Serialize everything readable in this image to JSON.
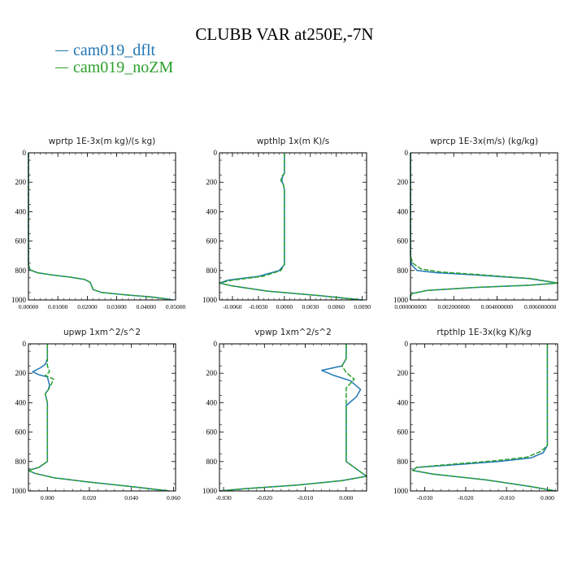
{
  "title": "CLUBB VAR at250E,-7N",
  "legend": [
    {
      "name": "cam019_dflt",
      "color": "#1f77b4"
    },
    {
      "name": "cam019_noZM",
      "color": "#2ca02c"
    }
  ],
  "chart_data": [
    {
      "type": "line",
      "title": "wprtp  1E-3x(m kg)/(s kg)",
      "xlim": [
        0,
        0.05
      ],
      "ylim": [
        0,
        1000
      ],
      "y_inverted": true,
      "xticks": [
        "0.00000",
        "0.01000",
        "0.02000",
        "0.03000",
        "0.04000",
        "0.05000"
      ],
      "xtick_values": [
        0,
        0.01,
        0.02,
        0.03,
        0.04,
        0.05
      ],
      "yticks": [
        "0",
        "200",
        "400",
        "600",
        "800",
        "1000"
      ],
      "series": [
        {
          "name": "cam019_dflt",
          "x": [
            0,
            0,
            0,
            0.0005,
            0.003,
            0.008,
            0.014,
            0.019,
            0.021,
            0.022,
            0.025,
            0.033,
            0.042,
            0.046,
            0.049
          ],
          "y": [
            0,
            500,
            760,
            795,
            815,
            830,
            845,
            860,
            880,
            930,
            950,
            965,
            980,
            990,
            1000
          ]
        },
        {
          "name": "cam019_noZM",
          "x": [
            0,
            0,
            0,
            0.0006,
            0.003,
            0.008,
            0.014,
            0.019,
            0.021,
            0.022,
            0.025,
            0.033,
            0.042,
            0.046,
            0.048
          ],
          "y": [
            0,
            500,
            760,
            795,
            815,
            830,
            845,
            860,
            880,
            930,
            950,
            965,
            980,
            990,
            1000
          ]
        }
      ]
    },
    {
      "type": "line",
      "title": "wpthlp  1x(m K)/s",
      "xlim": [
        -0.0075,
        0.0095
      ],
      "ylim": [
        0,
        1000
      ],
      "y_inverted": true,
      "xticks": [
        "-0.0060",
        "-0.0030",
        "0.0000",
        "0.0030",
        "0.0060",
        "0.0090"
      ],
      "xtick_values": [
        -0.006,
        -0.003,
        0,
        0.003,
        0.006,
        0.009
      ],
      "yticks": [
        "0",
        "200",
        "400",
        "600",
        "800",
        "1000"
      ],
      "series": [
        {
          "name": "cam019_dflt",
          "x": [
            0,
            0,
            0,
            -0.0002,
            -0.0003,
            -0.0001,
            0,
            0,
            0,
            -0.0006,
            -0.003,
            -0.0065,
            -0.0075,
            -0.006,
            -0.002,
            0.004,
            0.009
          ],
          "y": [
            0,
            100,
            140,
            160,
            190,
            220,
            250,
            500,
            760,
            800,
            840,
            865,
            885,
            905,
            940,
            970,
            1000
          ]
        },
        {
          "name": "cam019_noZM",
          "x": [
            0,
            0,
            0,
            -0.0003,
            -0.0004,
            -0.0001,
            0,
            0,
            0,
            -0.0004,
            -0.0025,
            -0.006,
            -0.0075,
            -0.006,
            -0.002,
            0.004,
            0.009
          ],
          "y": [
            0,
            100,
            140,
            160,
            190,
            220,
            250,
            500,
            760,
            800,
            840,
            865,
            885,
            905,
            940,
            970,
            1000
          ]
        }
      ]
    },
    {
      "type": "line",
      "title": "wprcp  1E-3x(m/s) (kg/kg)",
      "xlim": [
        0,
        0.0068
      ],
      "ylim": [
        0,
        1000
      ],
      "y_inverted": true,
      "xticks": [
        "0.000000000",
        "0.002000000",
        "0.004000000",
        "0.006000000"
      ],
      "xtick_values": [
        0,
        0.002,
        0.004,
        0.006
      ],
      "yticks": [
        "0",
        "200",
        "400",
        "600",
        "800",
        "1000"
      ],
      "series": [
        {
          "name": "cam019_dflt",
          "x": [
            0,
            0,
            5e-05,
            0.0003,
            0.0012,
            0.003,
            0.0055,
            0.0068,
            0.0055,
            0.003,
            0.0008,
            0.0001,
            0,
            0
          ],
          "y": [
            0,
            700,
            760,
            800,
            815,
            830,
            855,
            885,
            900,
            915,
            935,
            955,
            970,
            1000
          ]
        },
        {
          "name": "cam019_noZM",
          "x": [
            0,
            0,
            0.0001,
            0.0005,
            0.0014,
            0.0032,
            0.0056,
            0.0068,
            0.0055,
            0.003,
            0.0008,
            0.0001,
            0,
            0
          ],
          "y": [
            0,
            700,
            750,
            790,
            810,
            828,
            855,
            885,
            900,
            915,
            935,
            955,
            970,
            1000
          ]
        }
      ]
    },
    {
      "type": "line",
      "title": "upwp  1xm^2/s^2",
      "xlim": [
        -0.009,
        0.061
      ],
      "ylim": [
        0,
        1000
      ],
      "y_inverted": true,
      "xticks": [
        "0.000",
        "0.020",
        "0.040",
        "0.060"
      ],
      "xtick_values": [
        0,
        0.02,
        0.04,
        0.06
      ],
      "yticks": [
        "0",
        "200",
        "400",
        "600",
        "800",
        "1000"
      ],
      "series": [
        {
          "name": "cam019_dflt",
          "x": [
            0,
            0,
            -0.001,
            -0.003,
            -0.007,
            -0.004,
            0,
            0.001,
            0.0005,
            -0.001,
            0,
            0,
            -0.004,
            -0.009,
            -0.006,
            0.003,
            0.02,
            0.04,
            0.058
          ],
          "y": [
            0,
            100,
            140,
            160,
            190,
            210,
            225,
            280,
            310,
            340,
            400,
            800,
            840,
            860,
            880,
            910,
            940,
            970,
            1000
          ]
        },
        {
          "name": "cam019_noZM",
          "x": [
            0,
            0,
            0,
            0.001,
            -0.001,
            0.003,
            0.001,
            -0.001,
            0,
            0,
            -0.004,
            -0.009,
            -0.006,
            0.003,
            0.02,
            0.04,
            0.058
          ],
          "y": [
            0,
            100,
            150,
            190,
            215,
            240,
            300,
            340,
            400,
            800,
            840,
            860,
            880,
            910,
            940,
            970,
            1000
          ]
        }
      ]
    },
    {
      "type": "line",
      "title": "vpwp  1xm^2/s^2",
      "xlim": [
        -0.031,
        0.005
      ],
      "ylim": [
        0,
        1000
      ],
      "y_inverted": true,
      "xticks": [
        "-0.030",
        "-0.020",
        "-0.010",
        "0.000"
      ],
      "xtick_values": [
        -0.03,
        -0.02,
        -0.01,
        0
      ],
      "yticks": [
        "0",
        "200",
        "400",
        "600",
        "800",
        "1000"
      ],
      "series": [
        {
          "name": "cam019_dflt",
          "x": [
            0,
            0,
            -0.001,
            -0.006,
            -0.003,
            0.001,
            0.0035,
            0.0025,
            0,
            0,
            0,
            0.003,
            0.005,
            -0.001,
            -0.012,
            -0.025,
            -0.031
          ],
          "y": [
            0,
            100,
            150,
            180,
            215,
            250,
            310,
            360,
            420,
            600,
            800,
            860,
            900,
            930,
            960,
            985,
            1000
          ]
        },
        {
          "name": "cam019_noZM",
          "x": [
            0,
            0,
            -0.001,
            0,
            0.002,
            0,
            0,
            0,
            0,
            0.003,
            0.005,
            -0.001,
            -0.012,
            -0.025,
            -0.031
          ],
          "y": [
            0,
            100,
            150,
            195,
            240,
            300,
            400,
            600,
            800,
            860,
            900,
            930,
            960,
            985,
            1000
          ]
        }
      ]
    },
    {
      "type": "line",
      "title": "rtpthlp  1E-3x(kg K)/kg",
      "xlim": [
        -0.0335,
        0.0025
      ],
      "ylim": [
        0,
        1000
      ],
      "y_inverted": true,
      "xticks": [
        "-0.030",
        "-0.020",
        "-0.010",
        "0.000"
      ],
      "xtick_values": [
        -0.03,
        -0.02,
        -0.01,
        0
      ],
      "yticks": [
        "0",
        "200",
        "400",
        "600",
        "800",
        "1000"
      ],
      "series": [
        {
          "name": "cam019_dflt",
          "x": [
            0,
            0,
            0,
            -0.001,
            -0.004,
            -0.012,
            -0.024,
            -0.032,
            -0.033,
            -0.028,
            -0.015,
            -0.004,
            0.002
          ],
          "y": [
            0,
            500,
            690,
            740,
            775,
            800,
            825,
            840,
            860,
            885,
            925,
            970,
            1000
          ]
        },
        {
          "name": "cam019_noZM",
          "x": [
            0,
            0,
            0,
            -0.0015,
            -0.005,
            -0.013,
            -0.025,
            -0.032,
            -0.033,
            -0.028,
            -0.015,
            -0.004,
            0.002
          ],
          "y": [
            0,
            500,
            690,
            730,
            770,
            795,
            822,
            840,
            860,
            885,
            925,
            970,
            1000
          ]
        }
      ]
    }
  ]
}
